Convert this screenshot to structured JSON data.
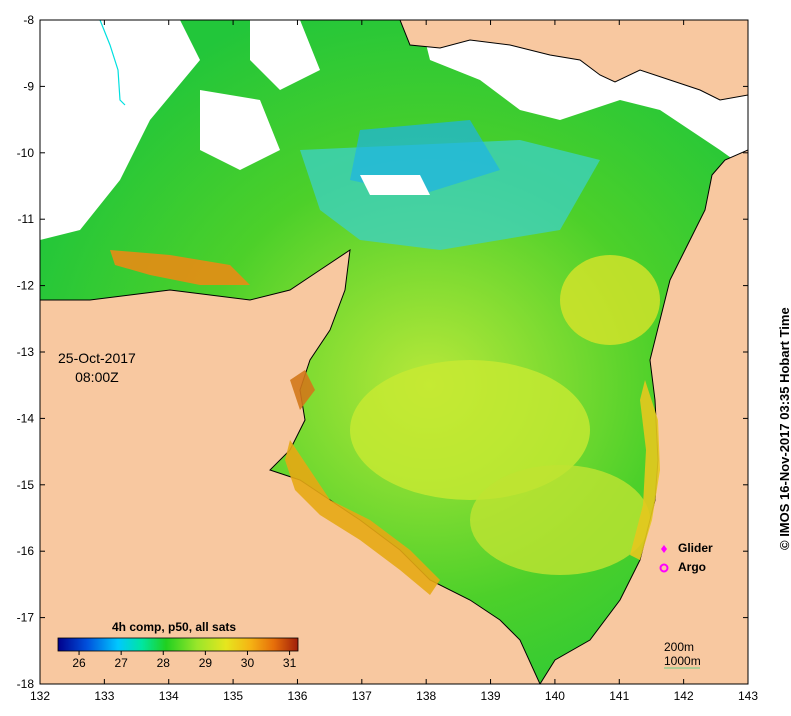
{
  "map": {
    "lon_ticks": [
      "132",
      "133",
      "134",
      "135",
      "136",
      "137",
      "138",
      "139",
      "140",
      "141",
      "142",
      "143"
    ],
    "lat_ticks": [
      "-8",
      "-9",
      "-10",
      "-11",
      "-12",
      "-13",
      "-14",
      "-15",
      "-16",
      "-17",
      "-18"
    ],
    "lon_range": [
      132,
      143
    ],
    "lat_range": [
      -18,
      -8
    ],
    "land_color": "#f8c8a0",
    "no_data_color": "#ffffff"
  },
  "timestamp": {
    "date": "25-Oct-2017",
    "time": "08:00Z"
  },
  "credit": "© IMOS 16-Nov-2017 03:35 Hobart Time",
  "legend": {
    "glider_label": "Glider",
    "argo_label": "Argo",
    "glider_icon": "diamond-icon",
    "argo_icon": "ring-icon",
    "depth_200": "200m",
    "depth_1000": "1000m"
  },
  "colorbar": {
    "title": "4h comp, p50, all sats",
    "ticks": [
      "26",
      "27",
      "28",
      "29",
      "30",
      "31"
    ],
    "range": [
      25.5,
      31.2
    ],
    "colors": [
      "#00008c",
      "#0050dc",
      "#00c8ff",
      "#00e6a0",
      "#20d020",
      "#9ae62a",
      "#e6e61e",
      "#f5b414",
      "#e66e0a",
      "#a01e0a"
    ]
  }
}
